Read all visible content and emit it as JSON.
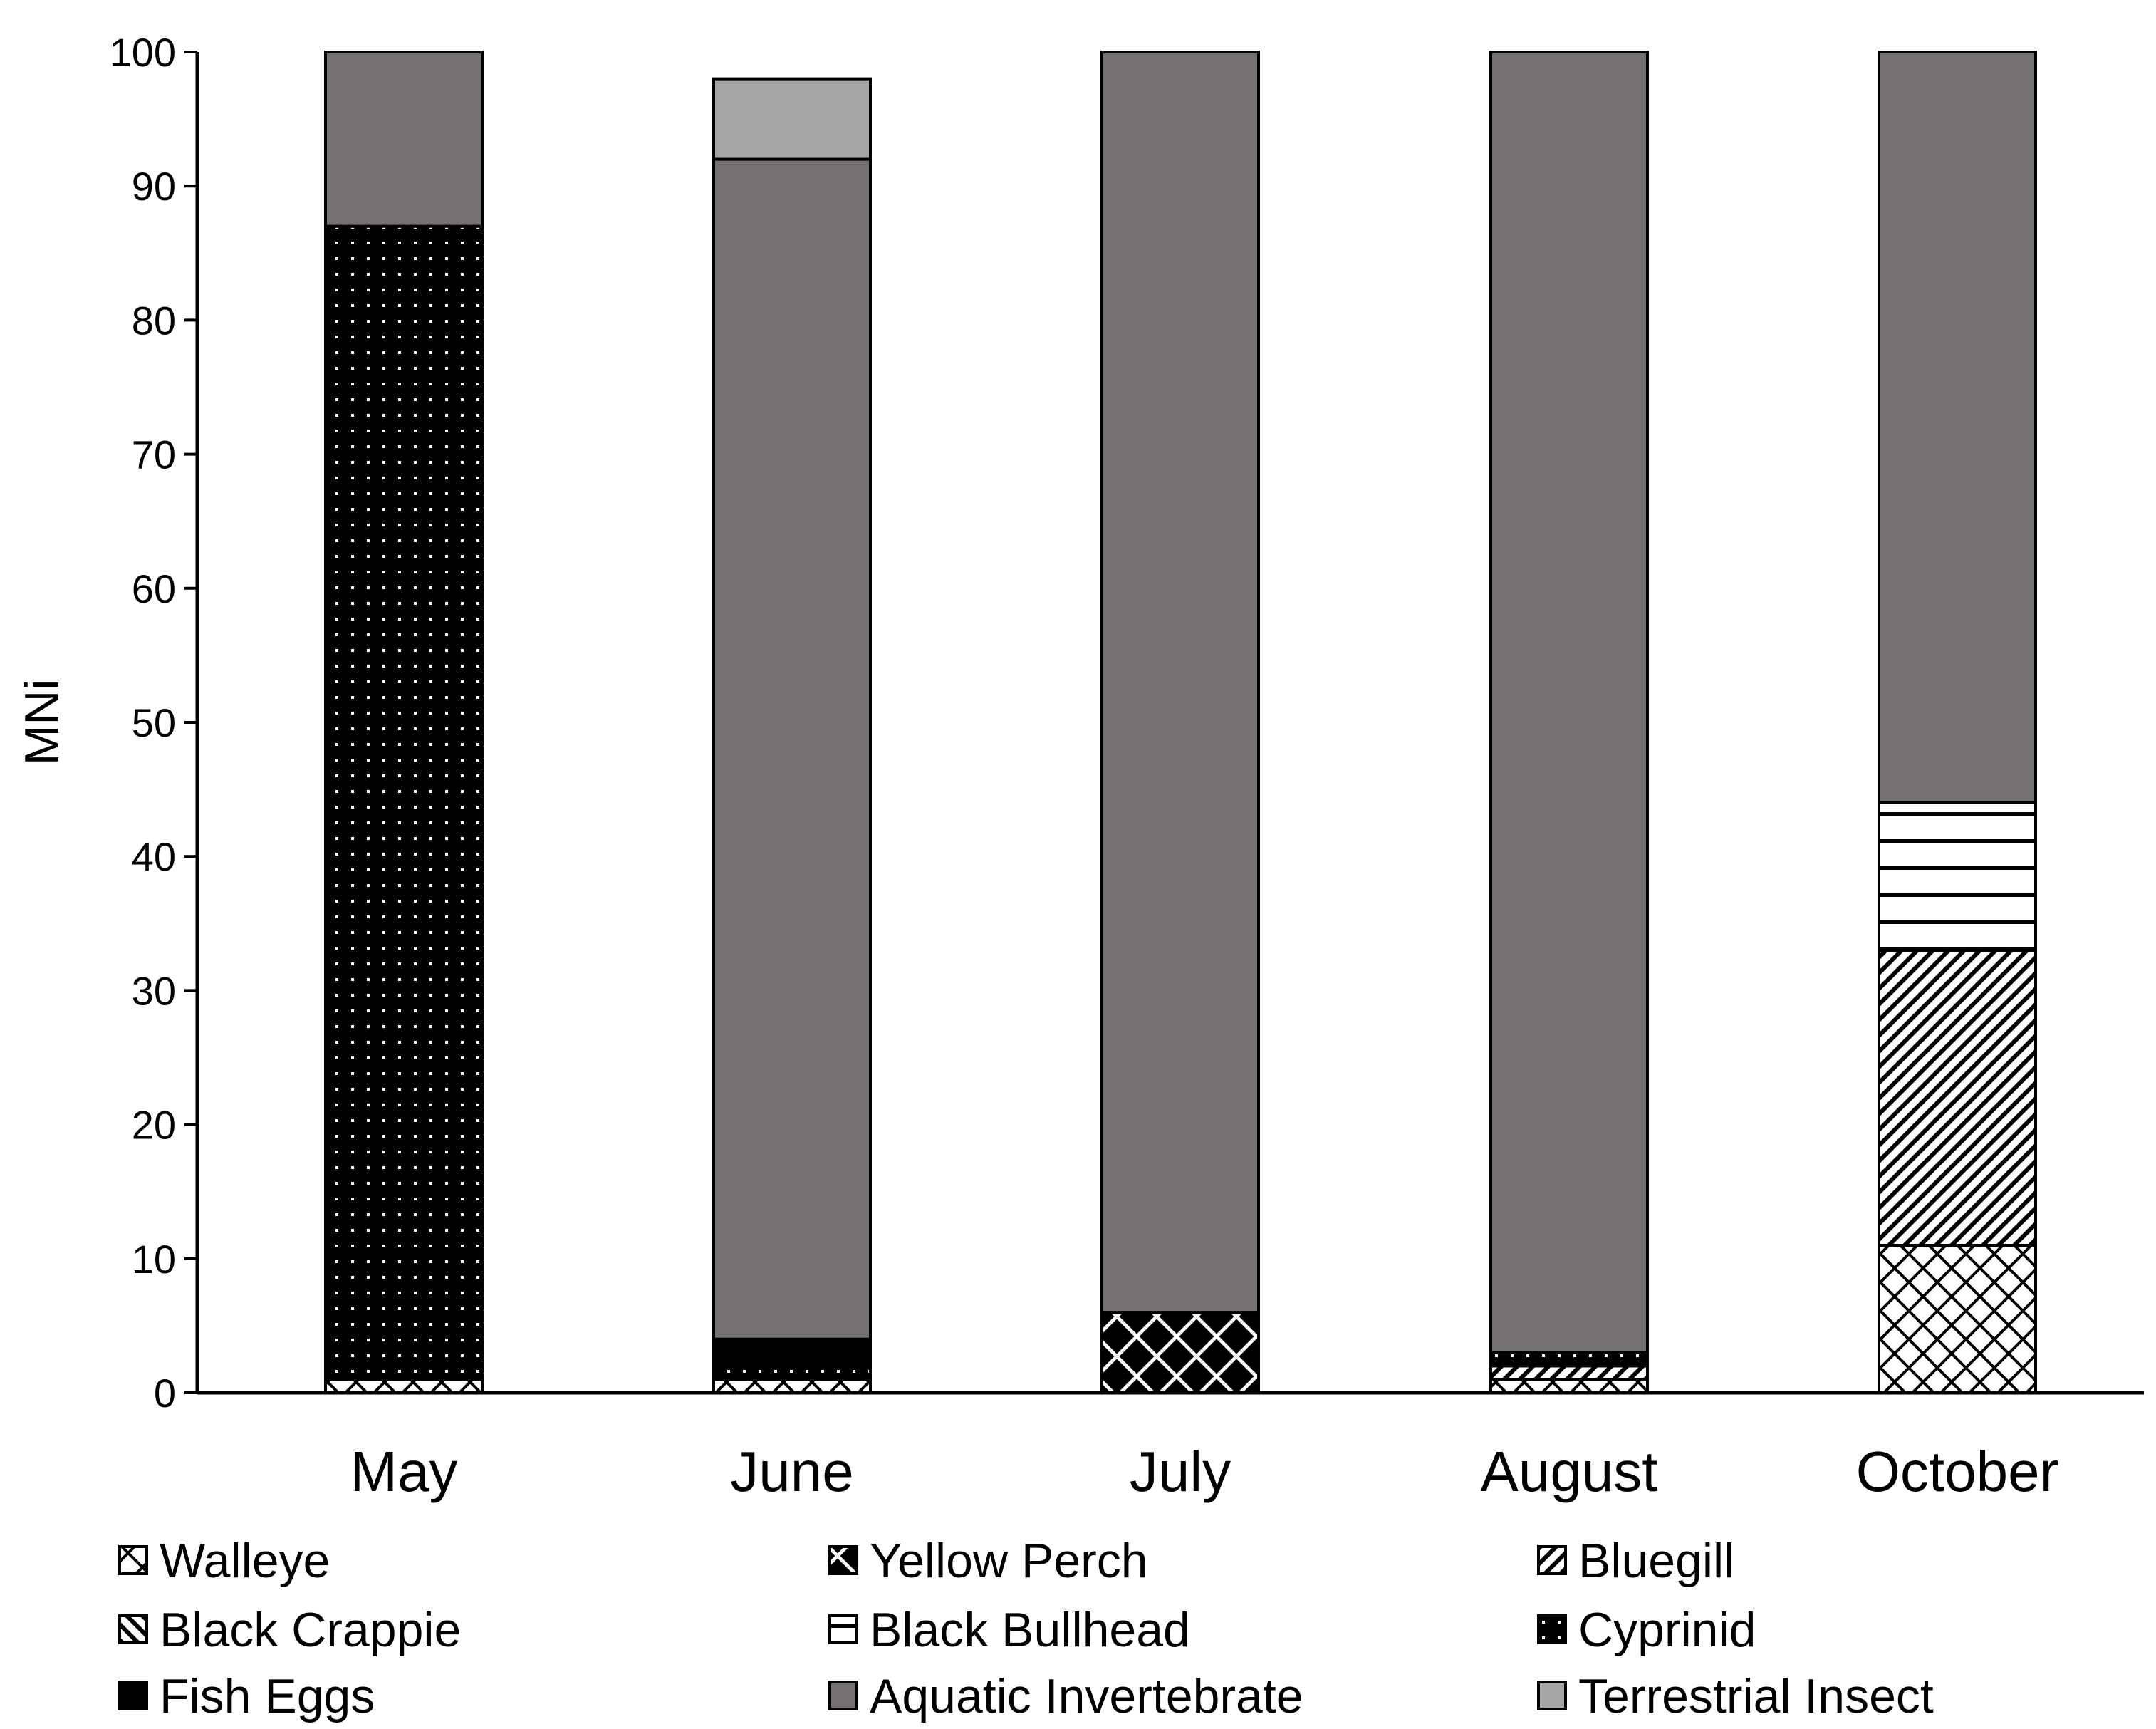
{
  "chart_data": {
    "type": "bar",
    "stacked": true,
    "title": "",
    "xlabel": "",
    "ylabel": "MNi",
    "ylim": [
      0,
      100
    ],
    "yticks": [
      0,
      10,
      20,
      30,
      40,
      50,
      60,
      70,
      80,
      90,
      100
    ],
    "grid": false,
    "legend_position": "bottom",
    "categories": [
      "May",
      "June",
      "July",
      "August",
      "October"
    ],
    "series": [
      {
        "name": "Walleye",
        "values": [
          1,
          1,
          0,
          1,
          11
        ],
        "color": "#ffffff",
        "pattern": "diamond-lattice"
      },
      {
        "name": "Yellow Perch",
        "values": [
          0,
          0,
          6,
          0,
          0
        ],
        "color": "#000000",
        "pattern": "dark-lattice"
      },
      {
        "name": "Bluegill",
        "values": [
          0,
          0,
          0,
          1,
          22
        ],
        "color": "#ffffff",
        "pattern": "diagonal-stripes"
      },
      {
        "name": "Black Crappie",
        "values": [
          0,
          0,
          0,
          0,
          0
        ],
        "color": "#ffffff",
        "pattern": "reverse-diagonal"
      },
      {
        "name": "Black Bullhead",
        "values": [
          0,
          0,
          0,
          0,
          11
        ],
        "color": "#ffffff",
        "pattern": "horizontal-stripes"
      },
      {
        "name": "Cyprinid",
        "values": [
          86,
          1,
          0,
          1,
          0
        ],
        "color": "#000000",
        "pattern": "dotted"
      },
      {
        "name": "Fish Eggs",
        "values": [
          0,
          2,
          0,
          0,
          0
        ],
        "color": "#000000",
        "pattern": "solid"
      },
      {
        "name": "Aquatic Invertebrate",
        "values": [
          13,
          88,
          94,
          97,
          56
        ],
        "color": "#767171",
        "pattern": "solid"
      },
      {
        "name": "Terrestrial Insect",
        "values": [
          0,
          6,
          0,
          0,
          0
        ],
        "color": "#a6a6a6",
        "pattern": "solid"
      }
    ],
    "legend_order": [
      "Walleye",
      "Yellow Perch",
      "Bluegill",
      "Black Crappie",
      "Black Bullhead",
      "Cyprinid",
      "Fish Eggs",
      "Aquatic Invertebrate",
      "Terrestrial Insect"
    ]
  }
}
